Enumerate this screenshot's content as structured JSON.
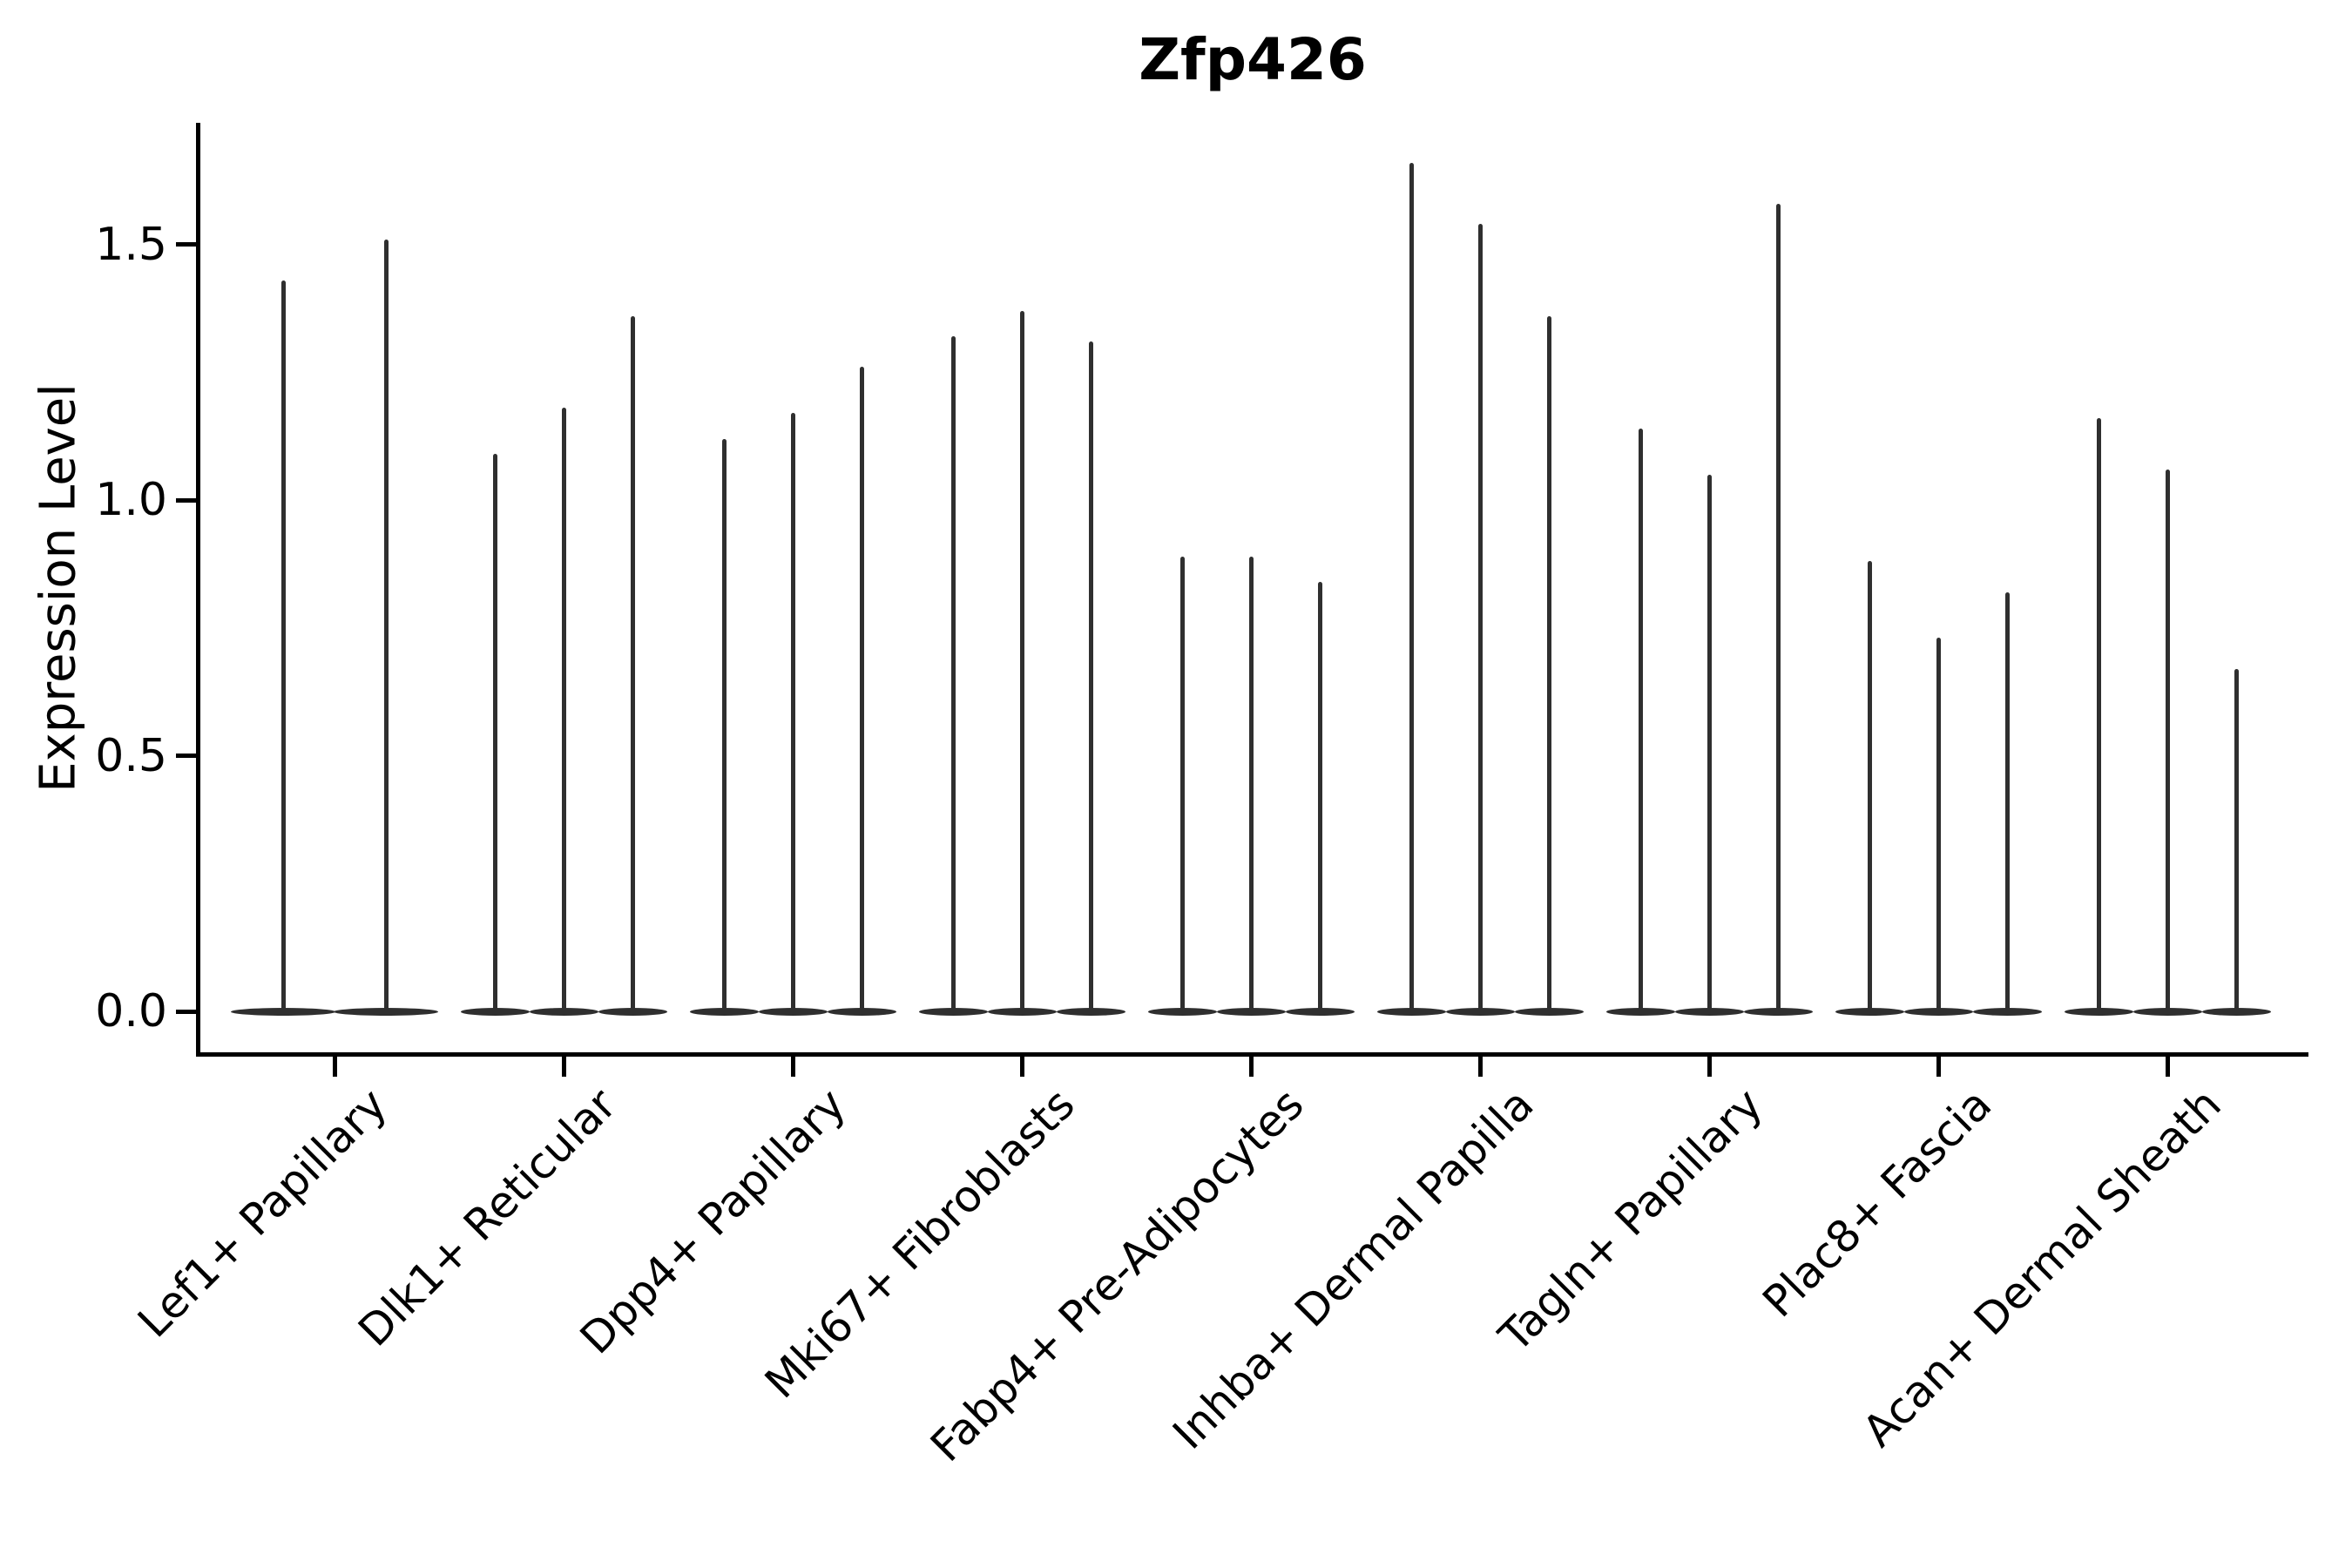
{
  "title": "Zfp426",
  "ylabel": "Expression Level",
  "colors": {
    "violin": "#2f2f2f",
    "axis": "#000000",
    "text": "#000000",
    "background": "#ffffff"
  },
  "chart_data": {
    "type": "violin",
    "title": "Zfp426",
    "xlabel": "",
    "ylabel": "Expression Level",
    "grid": false,
    "legend": null,
    "ylim": [
      -0.08,
      1.74
    ],
    "yticks": [
      0.0,
      0.5,
      1.0,
      1.5
    ],
    "ytick_labels": [
      "0.0",
      "0.5",
      "1.0",
      "1.5"
    ],
    "categories": [
      "Lef1+ Papillary",
      "Dlk1+ Reticular",
      "Dpp4+ Papillary",
      "Mki67+ Fibroblasts",
      "Fabp4+ Pre-Adipocytes",
      "Inhba+ Dermal Papilla",
      "Tagln+ Papillary",
      "Plac8+ Fascia",
      "Acan+ Dermal Sheath"
    ],
    "violins_per_category": [
      {
        "category": "Lef1+ Papillary",
        "peak_expression": [
          1.43,
          1.51
        ]
      },
      {
        "category": "Dlk1+ Reticular",
        "peak_expression": [
          1.09,
          1.18,
          1.36
        ]
      },
      {
        "category": "Dpp4+ Papillary",
        "peak_expression": [
          1.12,
          1.17,
          1.26
        ]
      },
      {
        "category": "Mki67+ Fibroblasts",
        "peak_expression": [
          1.32,
          1.37,
          1.31
        ]
      },
      {
        "category": "Fabp4+ Pre-Adipocytes",
        "peak_expression": [
          0.89,
          0.89,
          0.84
        ]
      },
      {
        "category": "Inhba+ Dermal Papilla",
        "peak_expression": [
          1.66,
          1.54,
          1.36
        ]
      },
      {
        "category": "Tagln+ Papillary",
        "peak_expression": [
          1.14,
          1.05,
          1.58
        ]
      },
      {
        "category": "Plac8+ Fascia",
        "peak_expression": [
          0.88,
          0.73,
          0.82
        ]
      },
      {
        "category": "Acan+ Dermal Sheath",
        "peak_expression": [
          1.16,
          1.06,
          0.67
        ]
      }
    ],
    "note": "All violins are extremely narrow spikes rising from a wide flat base at expression 0; listed values are the top of each spike."
  }
}
